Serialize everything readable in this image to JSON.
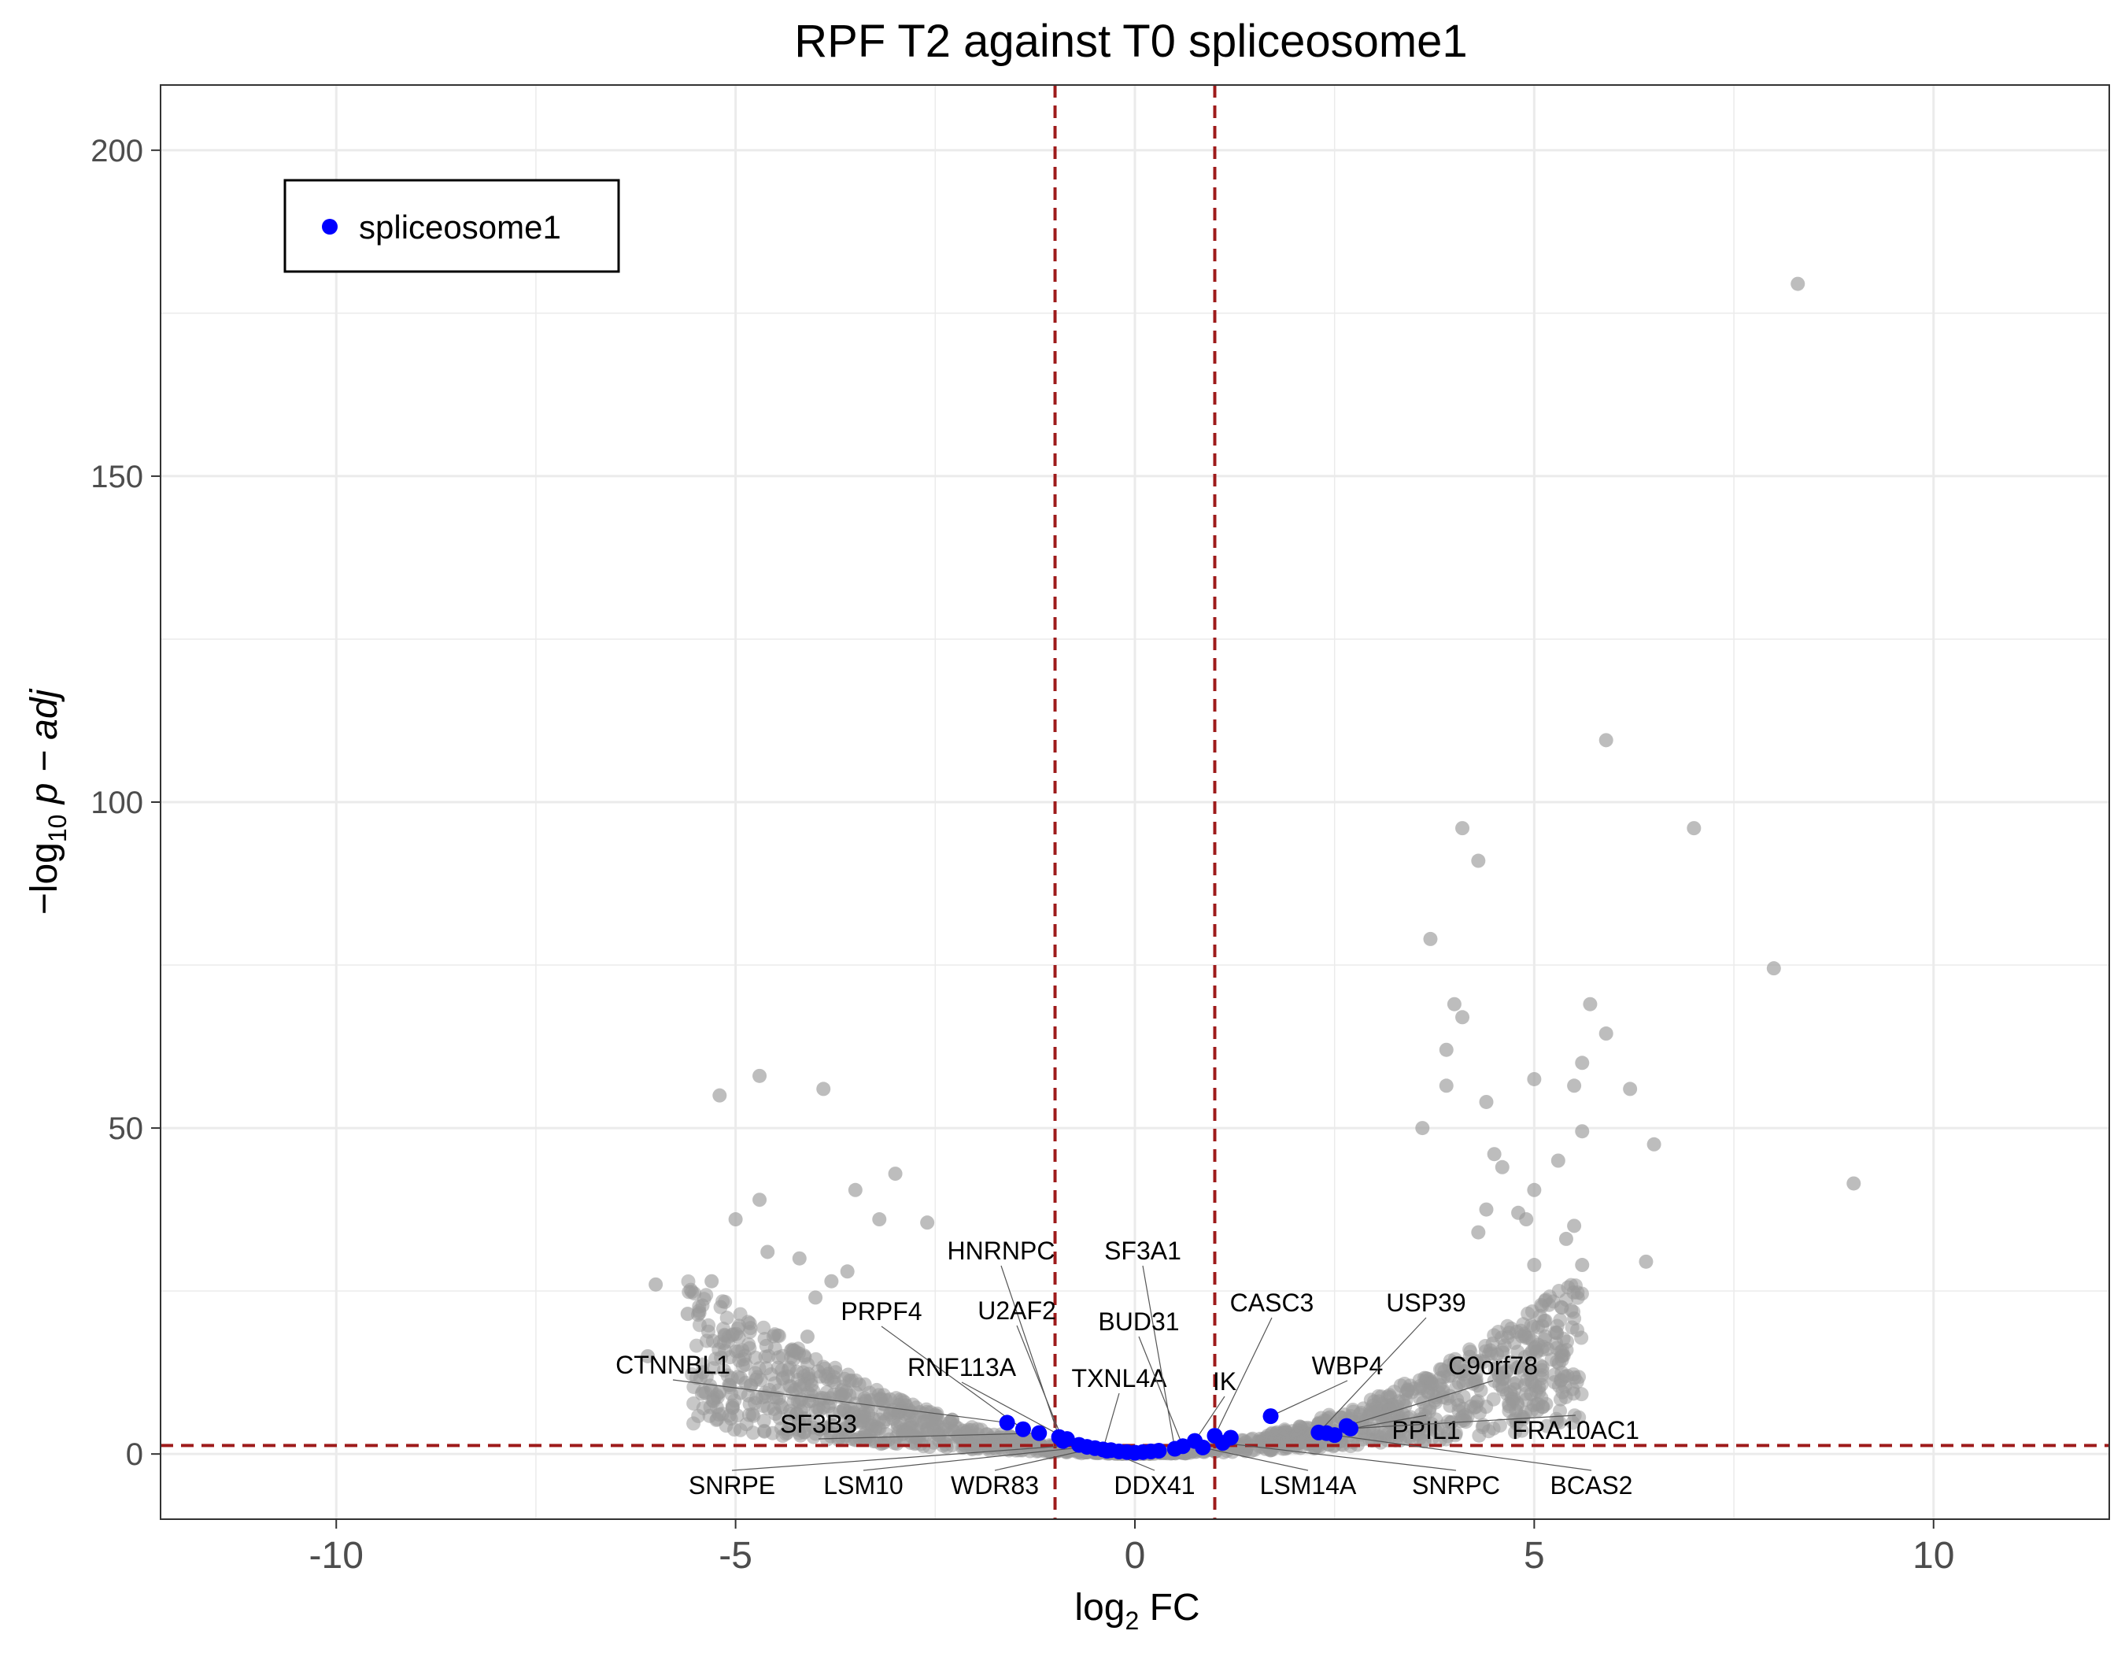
{
  "chart_data": {
    "type": "scatter",
    "title": "RPF T2 against T0 spliceosome1",
    "xlabel": {
      "main": "log",
      "sub": "2",
      "suffix": " FC"
    },
    "ylabel": {
      "prefix": "−log",
      "sub": "10",
      "suffix": " p − adj"
    },
    "xlim": [
      -12.2,
      12.2
    ],
    "ylim": [
      -10,
      210
    ],
    "x_ticks": [
      -10,
      -5,
      0,
      5,
      10
    ],
    "x_tick_labels": [
      "-10",
      "-5",
      "0",
      "5",
      "10"
    ],
    "y_ticks": [
      0,
      50,
      100,
      150,
      200
    ],
    "y_tick_labels": [
      "0",
      "50",
      "100",
      "150",
      "200"
    ],
    "grid": true,
    "threshold_lines": {
      "x": [
        -1,
        1
      ],
      "y": 1.3,
      "color": "#9e1b1b"
    },
    "legend": {
      "placement": "top-left",
      "entries": [
        {
          "label": "spliceosome1",
          "color": "#0000ff"
        }
      ]
    },
    "series": [
      {
        "name": "spliceosome1",
        "color": "#0000ff",
        "points": [
          {
            "label": "CTNNBL1",
            "x": -1.6,
            "y": 4.8
          },
          {
            "label": "PRPF4",
            "x": -1.4,
            "y": 3.8
          },
          {
            "label": "SF3B3",
            "x": -1.2,
            "y": 3.2
          },
          {
            "label": "HNRNPC",
            "x": -0.95,
            "y": 2.6
          },
          {
            "label": "U2AF2",
            "x": -0.9,
            "y": 2.0
          },
          {
            "label": "RNF113A",
            "x": -0.85,
            "y": 2.3
          },
          {
            "label": "SNRPE",
            "x": -0.7,
            "y": 1.4
          },
          {
            "label": "LSM10",
            "x": -0.6,
            "y": 1.1
          },
          {
            "label": "WDR83",
            "x": -0.5,
            "y": 0.9
          },
          {
            "label": "TXNL4A",
            "x": -0.4,
            "y": 0.7
          },
          {
            "label": "DDX41",
            "x": -0.35,
            "y": 0.5
          },
          {
            "label": "",
            "x": -0.3,
            "y": 0.6
          },
          {
            "label": "",
            "x": -0.2,
            "y": 0.4
          },
          {
            "label": "",
            "x": -0.1,
            "y": 0.3
          },
          {
            "label": "",
            "x": 0.0,
            "y": 0.2
          },
          {
            "label": "",
            "x": 0.1,
            "y": 0.3
          },
          {
            "label": "",
            "x": 0.2,
            "y": 0.4
          },
          {
            "label": "",
            "x": 0.3,
            "y": 0.5
          },
          {
            "label": "SF3A1",
            "x": 0.5,
            "y": 0.8
          },
          {
            "label": "BUD31",
            "x": 0.6,
            "y": 1.2
          },
          {
            "label": "IK",
            "x": 0.75,
            "y": 2.0
          },
          {
            "label": "LSM14A",
            "x": 0.85,
            "y": 1.0
          },
          {
            "label": "CASC3",
            "x": 1.0,
            "y": 2.8
          },
          {
            "label": "SNRPC",
            "x": 1.1,
            "y": 1.7
          },
          {
            "label": "",
            "x": 1.2,
            "y": 2.5
          },
          {
            "label": "WBP4",
            "x": 1.7,
            "y": 5.8
          },
          {
            "label": "USP39",
            "x": 2.3,
            "y": 3.3
          },
          {
            "label": "PPIL1",
            "x": 2.4,
            "y": 3.2
          },
          {
            "label": "BCAS2",
            "x": 2.5,
            "y": 2.9
          },
          {
            "label": "C9orf78",
            "x": 2.65,
            "y": 4.3
          },
          {
            "label": "FRA10AC1",
            "x": 2.7,
            "y": 3.9
          }
        ]
      }
    ],
    "background_points": {
      "color": "#999999",
      "points": [
        [
          8.3,
          179.5
        ],
        [
          5.9,
          109.5
        ],
        [
          7.0,
          96.0
        ],
        [
          4.1,
          96.0
        ],
        [
          4.3,
          91.0
        ],
        [
          8.0,
          74.5
        ],
        [
          3.7,
          79.0
        ],
        [
          4.0,
          69.0
        ],
        [
          4.1,
          67.0
        ],
        [
          5.7,
          69.0
        ],
        [
          5.9,
          64.5
        ],
        [
          5.6,
          60.0
        ],
        [
          3.9,
          62.0
        ],
        [
          3.9,
          56.5
        ],
        [
          5.0,
          57.5
        ],
        [
          5.5,
          56.5
        ],
        [
          6.2,
          56.0
        ],
        [
          4.4,
          54.0
        ],
        [
          5.6,
          49.5
        ],
        [
          3.6,
          50.0
        ],
        [
          6.5,
          47.5
        ],
        [
          5.3,
          45.0
        ],
        [
          4.5,
          46.0
        ],
        [
          4.6,
          44.0
        ],
        [
          9.0,
          41.5
        ],
        [
          5.0,
          40.5
        ],
        [
          4.4,
          37.5
        ],
        [
          4.8,
          37.0
        ],
        [
          4.9,
          36.0
        ],
        [
          4.3,
          34.0
        ],
        [
          5.4,
          33.0
        ],
        [
          6.4,
          29.5
        ],
        [
          5.5,
          35.0
        ],
        [
          5.0,
          29.0
        ],
        [
          5.6,
          29.0
        ],
        [
          -5.2,
          55.0
        ],
        [
          -4.7,
          58.0
        ],
        [
          -3.9,
          56.0
        ],
        [
          -3.0,
          43.0
        ],
        [
          -3.5,
          40.5
        ],
        [
          -4.7,
          39.0
        ],
        [
          -5.0,
          36.0
        ],
        [
          -2.6,
          35.5
        ],
        [
          -3.2,
          36.0
        ],
        [
          -4.6,
          31.0
        ],
        [
          -6.0,
          26.0
        ],
        [
          -5.3,
          26.5
        ],
        [
          -5.6,
          21.5
        ],
        [
          -6.1,
          15.0
        ],
        [
          -5.2,
          9.5
        ],
        [
          -4.2,
          30.0
        ],
        [
          -3.6,
          28.0
        ],
        [
          -4.0,
          24.0
        ],
        [
          -3.8,
          26.5
        ],
        [
          -4.1,
          18.0
        ]
      ]
    }
  }
}
